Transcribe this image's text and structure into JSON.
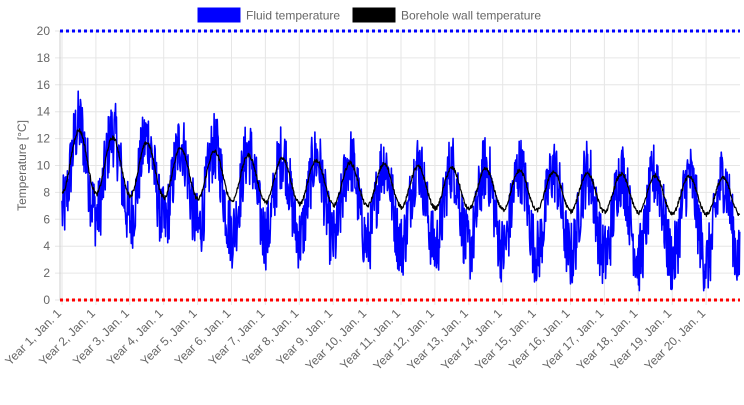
{
  "chart_data": {
    "type": "line",
    "title": "",
    "xlabel": "",
    "ylabel": "Temperature [°C]",
    "ylim": [
      0,
      20
    ],
    "yticks": [
      0,
      2,
      4,
      6,
      8,
      10,
      12,
      14,
      16,
      18,
      20
    ],
    "grid": true,
    "legend_position": "top",
    "categories": [
      "Year 1, Jan. 1",
      "Year 2, Jan. 1",
      "Year 3, Jan. 1",
      "Year 4, Jan. 1",
      "Year 5, Jan. 1",
      "Year 6, Jan. 1",
      "Year 7, Jan. 1",
      "Year 8, Jan. 1",
      "Year 9, Jan. 1",
      "Year 10, Jan. 1",
      "Year 11, Jan. 1",
      "Year 12, Jan. 1",
      "Year 13, Jan. 1",
      "Year 14, Jan. 1",
      "Year 15, Jan. 1",
      "Year 16, Jan. 1",
      "Year 17, Jan. 1",
      "Year 18, Jan. 1",
      "Year 19, Jan. 1",
      "Year 20, Jan. 1"
    ],
    "series": [
      {
        "name": "Fluid temperature",
        "color": "#0000ff",
        "annual_peak": [
          15.7,
          15.0,
          14.6,
          14.2,
          13.9,
          13.6,
          13.3,
          13.1,
          12.9,
          12.8,
          12.6,
          12.5,
          12.4,
          12.3,
          12.2,
          12.1,
          12.0,
          11.9,
          11.8,
          11.7
        ],
        "annual_trough": [
          3.9,
          3.6,
          3.4,
          3.0,
          2.6,
          2.3,
          2.2,
          2.0,
          1.8,
          1.7,
          1.5,
          1.3,
          1.2,
          1.1,
          0.9,
          0.7,
          0.6,
          0.4,
          0.3,
          0.1
        ]
      },
      {
        "name": "Borehole wall temperature",
        "color": "#000000",
        "annual_peak": [
          13.2,
          12.6,
          12.2,
          11.8,
          11.5,
          11.2,
          11.0,
          10.8,
          10.6,
          10.5,
          10.3,
          10.2,
          10.1,
          10.0,
          9.9,
          9.8,
          9.7,
          9.6,
          9.5,
          9.4
        ],
        "annual_trough": [
          7.4,
          7.3,
          7.2,
          7.1,
          7.0,
          6.9,
          6.8,
          6.7,
          6.6,
          6.6,
          6.5,
          6.4,
          6.4,
          6.3,
          6.3,
          6.2,
          6.2,
          6.1,
          6.1,
          6.0
        ]
      }
    ],
    "reference_lines": [
      {
        "value": 20,
        "color": "#0000ff"
      },
      {
        "value": 0,
        "color": "#ff0000"
      }
    ]
  }
}
